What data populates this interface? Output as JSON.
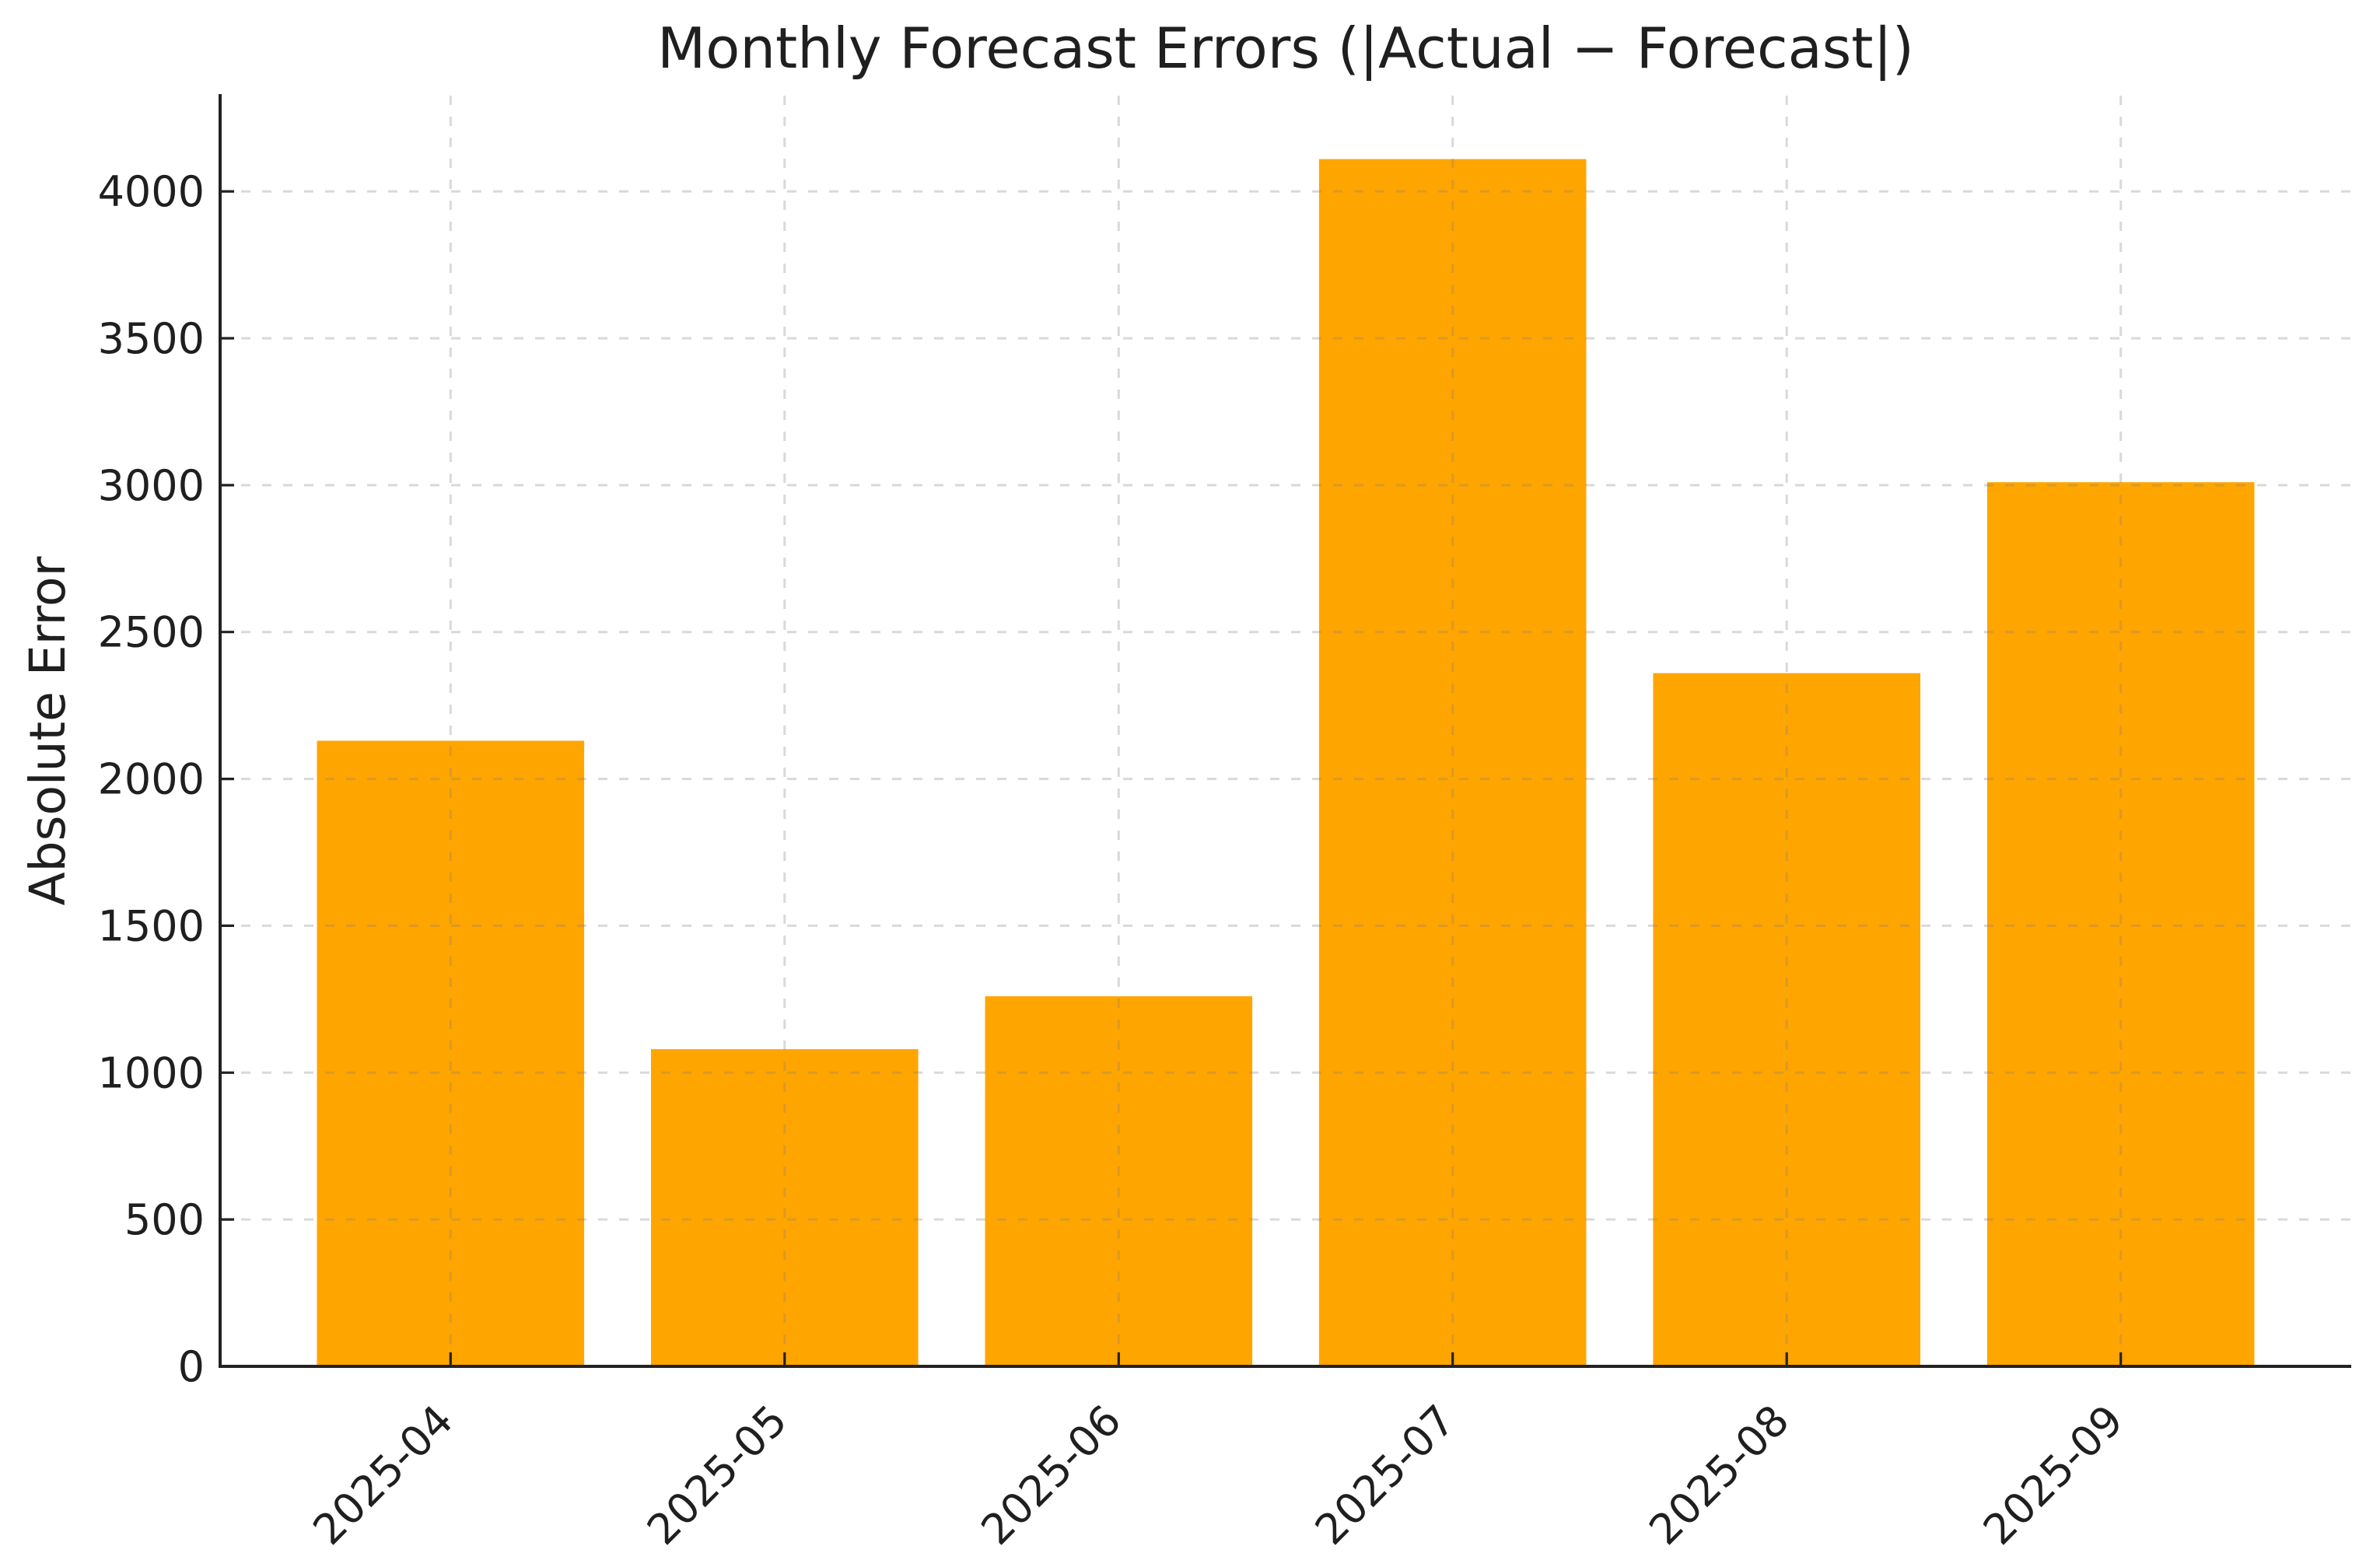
{
  "chart_data": {
    "type": "bar",
    "title": "Monthly Forecast Errors (|Actual − Forecast|)",
    "xlabel": "",
    "ylabel": "Absolute Error",
    "categories": [
      "2025-04",
      "2025-05",
      "2025-06",
      "2025-07",
      "2025-08",
      "2025-09"
    ],
    "values": [
      2130,
      1080,
      1260,
      4110,
      2360,
      3010
    ],
    "yticks": [
      0,
      500,
      1000,
      1500,
      2000,
      2500,
      3000,
      3500,
      4000
    ],
    "ylim": [
      0,
      4326
    ],
    "grid": true,
    "grid_style": "dashed",
    "legend": "none",
    "x_tick_rotation_deg": 45,
    "colors": {
      "bar": "#ffa500",
      "grid": "#808080",
      "axis": "#222222",
      "text": "#1f1f1f",
      "background": "#ffffff"
    }
  }
}
